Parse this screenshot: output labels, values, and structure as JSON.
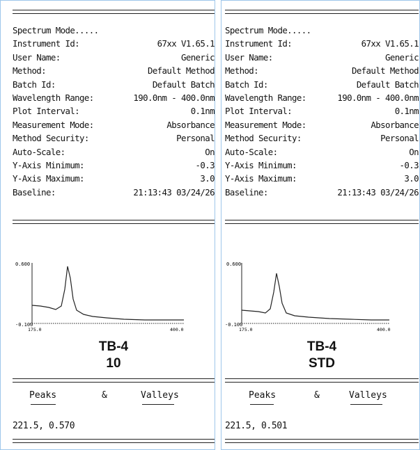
{
  "panels": [
    {
      "id": "left",
      "rows": [
        {
          "label": "Spectrum Mode.....",
          "value": ""
        },
        {
          "label": "Instrument Id:",
          "value": "67xx V1.65.1"
        },
        {
          "label": "User Name:",
          "value": "Generic"
        },
        {
          "label": "Method:",
          "value": "Default Method"
        },
        {
          "label": "Batch Id:",
          "value": "Default Batch"
        },
        {
          "label": "Wavelength Range:",
          "value": "190.0nm - 400.0nm"
        },
        {
          "label": "Plot Interval:",
          "value": "0.1nm"
        },
        {
          "label": "Measurement Mode:",
          "value": "Absorbance"
        },
        {
          "label": "Method Security:",
          "value": "Personal"
        },
        {
          "label": "Auto-Scale:",
          "value": "On"
        },
        {
          "label": "Y-Axis Minimum:",
          "value": "-0.3"
        },
        {
          "label": "Y-Axis Maximum:",
          "value": "3.0"
        },
        {
          "label": "Baseline:",
          "value": "21:13:43 03/24/26"
        }
      ],
      "plot": {
        "y_top": "0.600",
        "y_bottom": "-0.100",
        "x_left": "175.0",
        "x_mid": "",
        "x_right": "400.0"
      },
      "sample_name": "TB-4",
      "sample_id": "10",
      "peaks_label": "Peaks",
      "amp": "&",
      "valleys_label": "Valleys",
      "peak_value": "221.5, 0.570"
    },
    {
      "id": "right",
      "rows": [
        {
          "label": "Spectrum Mode.....",
          "value": ""
        },
        {
          "label": "Instrument Id:",
          "value": "67xx V1.65.1"
        },
        {
          "label": "User Name:",
          "value": "Generic"
        },
        {
          "label": "Method:",
          "value": "Default Method"
        },
        {
          "label": "Batch Id:",
          "value": "Default Batch"
        },
        {
          "label": "Wavelength Range:",
          "value": "190.0nm - 400.0nm"
        },
        {
          "label": "Plot Interval:",
          "value": "0.1nm"
        },
        {
          "label": "Measurement Mode:",
          "value": "Absorbance"
        },
        {
          "label": "Method Security:",
          "value": "Personal"
        },
        {
          "label": "Auto-Scale:",
          "value": "On"
        },
        {
          "label": "Y-Axis Minimum:",
          "value": "-0.3"
        },
        {
          "label": "Y-Axis Maximum:",
          "value": "3.0"
        },
        {
          "label": "Baseline:",
          "value": "21:13:43 03/24/26"
        }
      ],
      "plot": {
        "y_top": "0.600",
        "y_bottom": "-0.100",
        "x_left": "175.0",
        "x_mid": "",
        "x_right": "400.0"
      },
      "sample_name": "TB-4",
      "sample_id": "STD",
      "peaks_label": "Peaks",
      "amp": "&",
      "valleys_label": "Valleys",
      "peak_value": "221.5, 0.501"
    }
  ]
}
